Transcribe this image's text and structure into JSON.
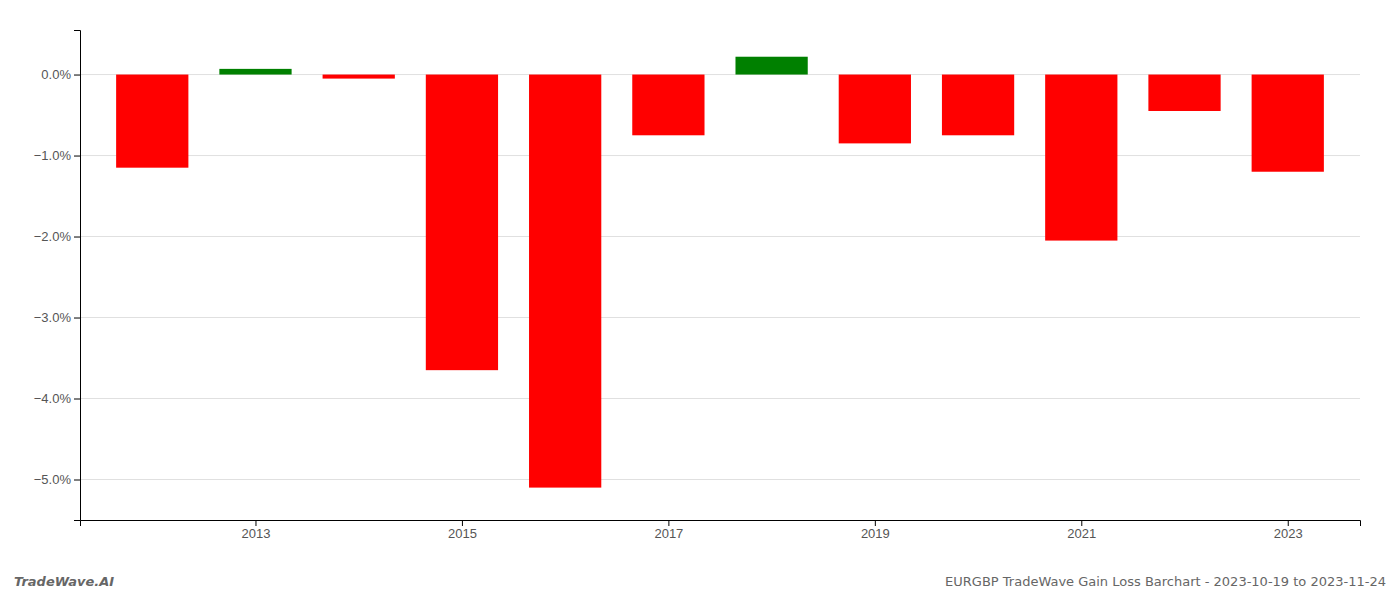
{
  "chart_data": {
    "type": "bar",
    "x": [
      2012,
      2013,
      2014,
      2015,
      2016,
      2017,
      2018,
      2019,
      2020,
      2021,
      2022,
      2023
    ],
    "values": [
      -1.15,
      0.07,
      -0.05,
      -3.65,
      -5.1,
      -0.75,
      0.22,
      -0.85,
      -0.75,
      -2.05,
      -0.45,
      -1.2
    ],
    "colors": [
      "#ff0000",
      "#008000",
      "#ff0000",
      "#ff0000",
      "#ff0000",
      "#ff0000",
      "#008000",
      "#ff0000",
      "#ff0000",
      "#ff0000",
      "#ff0000",
      "#ff0000"
    ],
    "xlim": [
      2011.3,
      2023.7
    ],
    "xticks": [
      2013,
      2015,
      2017,
      2019,
      2021,
      2023
    ],
    "ylim": [
      -5.5,
      0.55
    ],
    "yticks": [
      {
        "value": 0.0,
        "label": "0.0%"
      },
      {
        "value": -1.0,
        "label": "−1.0%"
      },
      {
        "value": -2.0,
        "label": "−2.0%"
      },
      {
        "value": -3.0,
        "label": "−3.0%"
      },
      {
        "value": -4.0,
        "label": "−4.0%"
      },
      {
        "value": -5.0,
        "label": "−5.0%"
      }
    ],
    "grid": true,
    "annotations": [
      "TradeWave.AI",
      "EURGBP TradeWave Gain Loss Barchart - 2023-10-19 to 2023-11-24"
    ]
  }
}
